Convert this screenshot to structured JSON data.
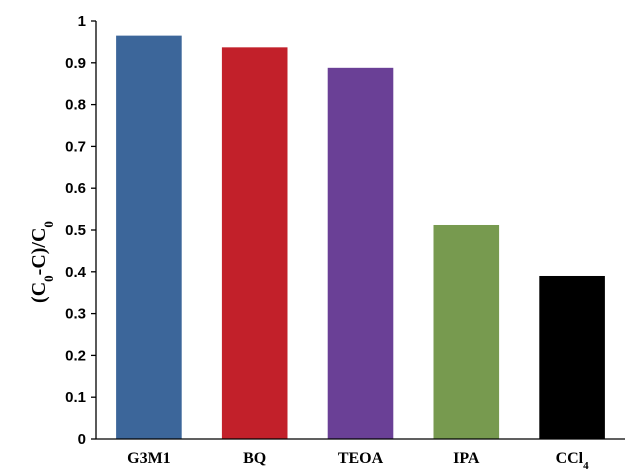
{
  "chart_data": {
    "type": "bar",
    "title": "",
    "xlabel": "",
    "ylabel": "(C0-C)/C0",
    "categories": [
      "G3M1",
      "BQ",
      "TEOA",
      "IPA",
      "CCl4"
    ],
    "values": [
      0.965,
      0.937,
      0.888,
      0.512,
      0.39
    ],
    "colors": [
      "#3C669A",
      "#C2202A",
      "#6A4096",
      "#779A4F",
      "#000000"
    ],
    "ylim": [
      0,
      1
    ],
    "yticks": [
      "0",
      "0.1",
      "0.2",
      "0.3",
      "0.4",
      "0.5",
      "0.6",
      "0.7",
      "0.8",
      "0.9",
      "1"
    ],
    "grid": false,
    "legend": "none"
  }
}
